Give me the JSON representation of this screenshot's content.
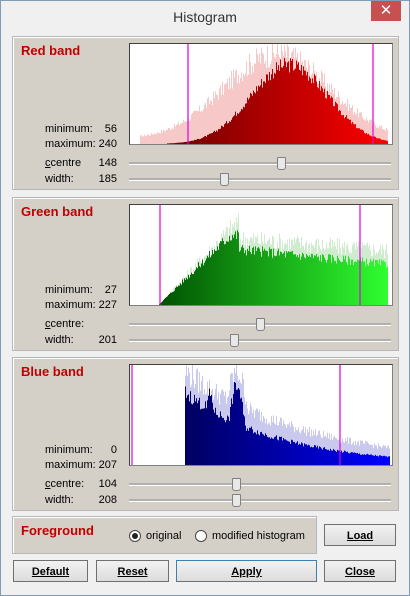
{
  "window": {
    "title": "Histogram",
    "close_glyph": "✕"
  },
  "labels": {
    "minimum": "minimum:",
    "maximum": "maximum:",
    "centre": "centre",
    "width": "width:"
  },
  "bands": [
    {
      "title": "Red band",
      "minimum": "56",
      "maximum": "240",
      "centre": "148",
      "width": "185",
      "color_dark": "#5a0000",
      "color_bright": "#ff0000",
      "ghost": "#f6c8c8",
      "centre_pos": 0.58,
      "width_pos": 0.36
    },
    {
      "title": "Green band",
      "minimum": "27",
      "maximum": "227",
      "centre": "",
      "width": "201",
      "color_dark": "#005000",
      "color_bright": "#30ff30",
      "ghost": "#cfeccf",
      "centre_pos": 0.5,
      "width_pos": 0.4
    },
    {
      "title": "Blue band",
      "minimum": "0",
      "maximum": "207",
      "centre": "104",
      "width": "208",
      "color_dark": "#000060",
      "color_bright": "#0000ff",
      "ghost": "#c9c9ee",
      "centre_pos": 0.41,
      "width_pos": 0.41
    }
  ],
  "foreground": {
    "title": "Foreground",
    "option_original": "original",
    "option_modified": "modified histogram",
    "selected": "original"
  },
  "buttons": {
    "load": "Load",
    "default": "Default",
    "reset": "Reset",
    "apply": "Apply",
    "close": "Close"
  },
  "colors": {
    "marker": "#e000e0",
    "title_red": "#c00000"
  }
}
